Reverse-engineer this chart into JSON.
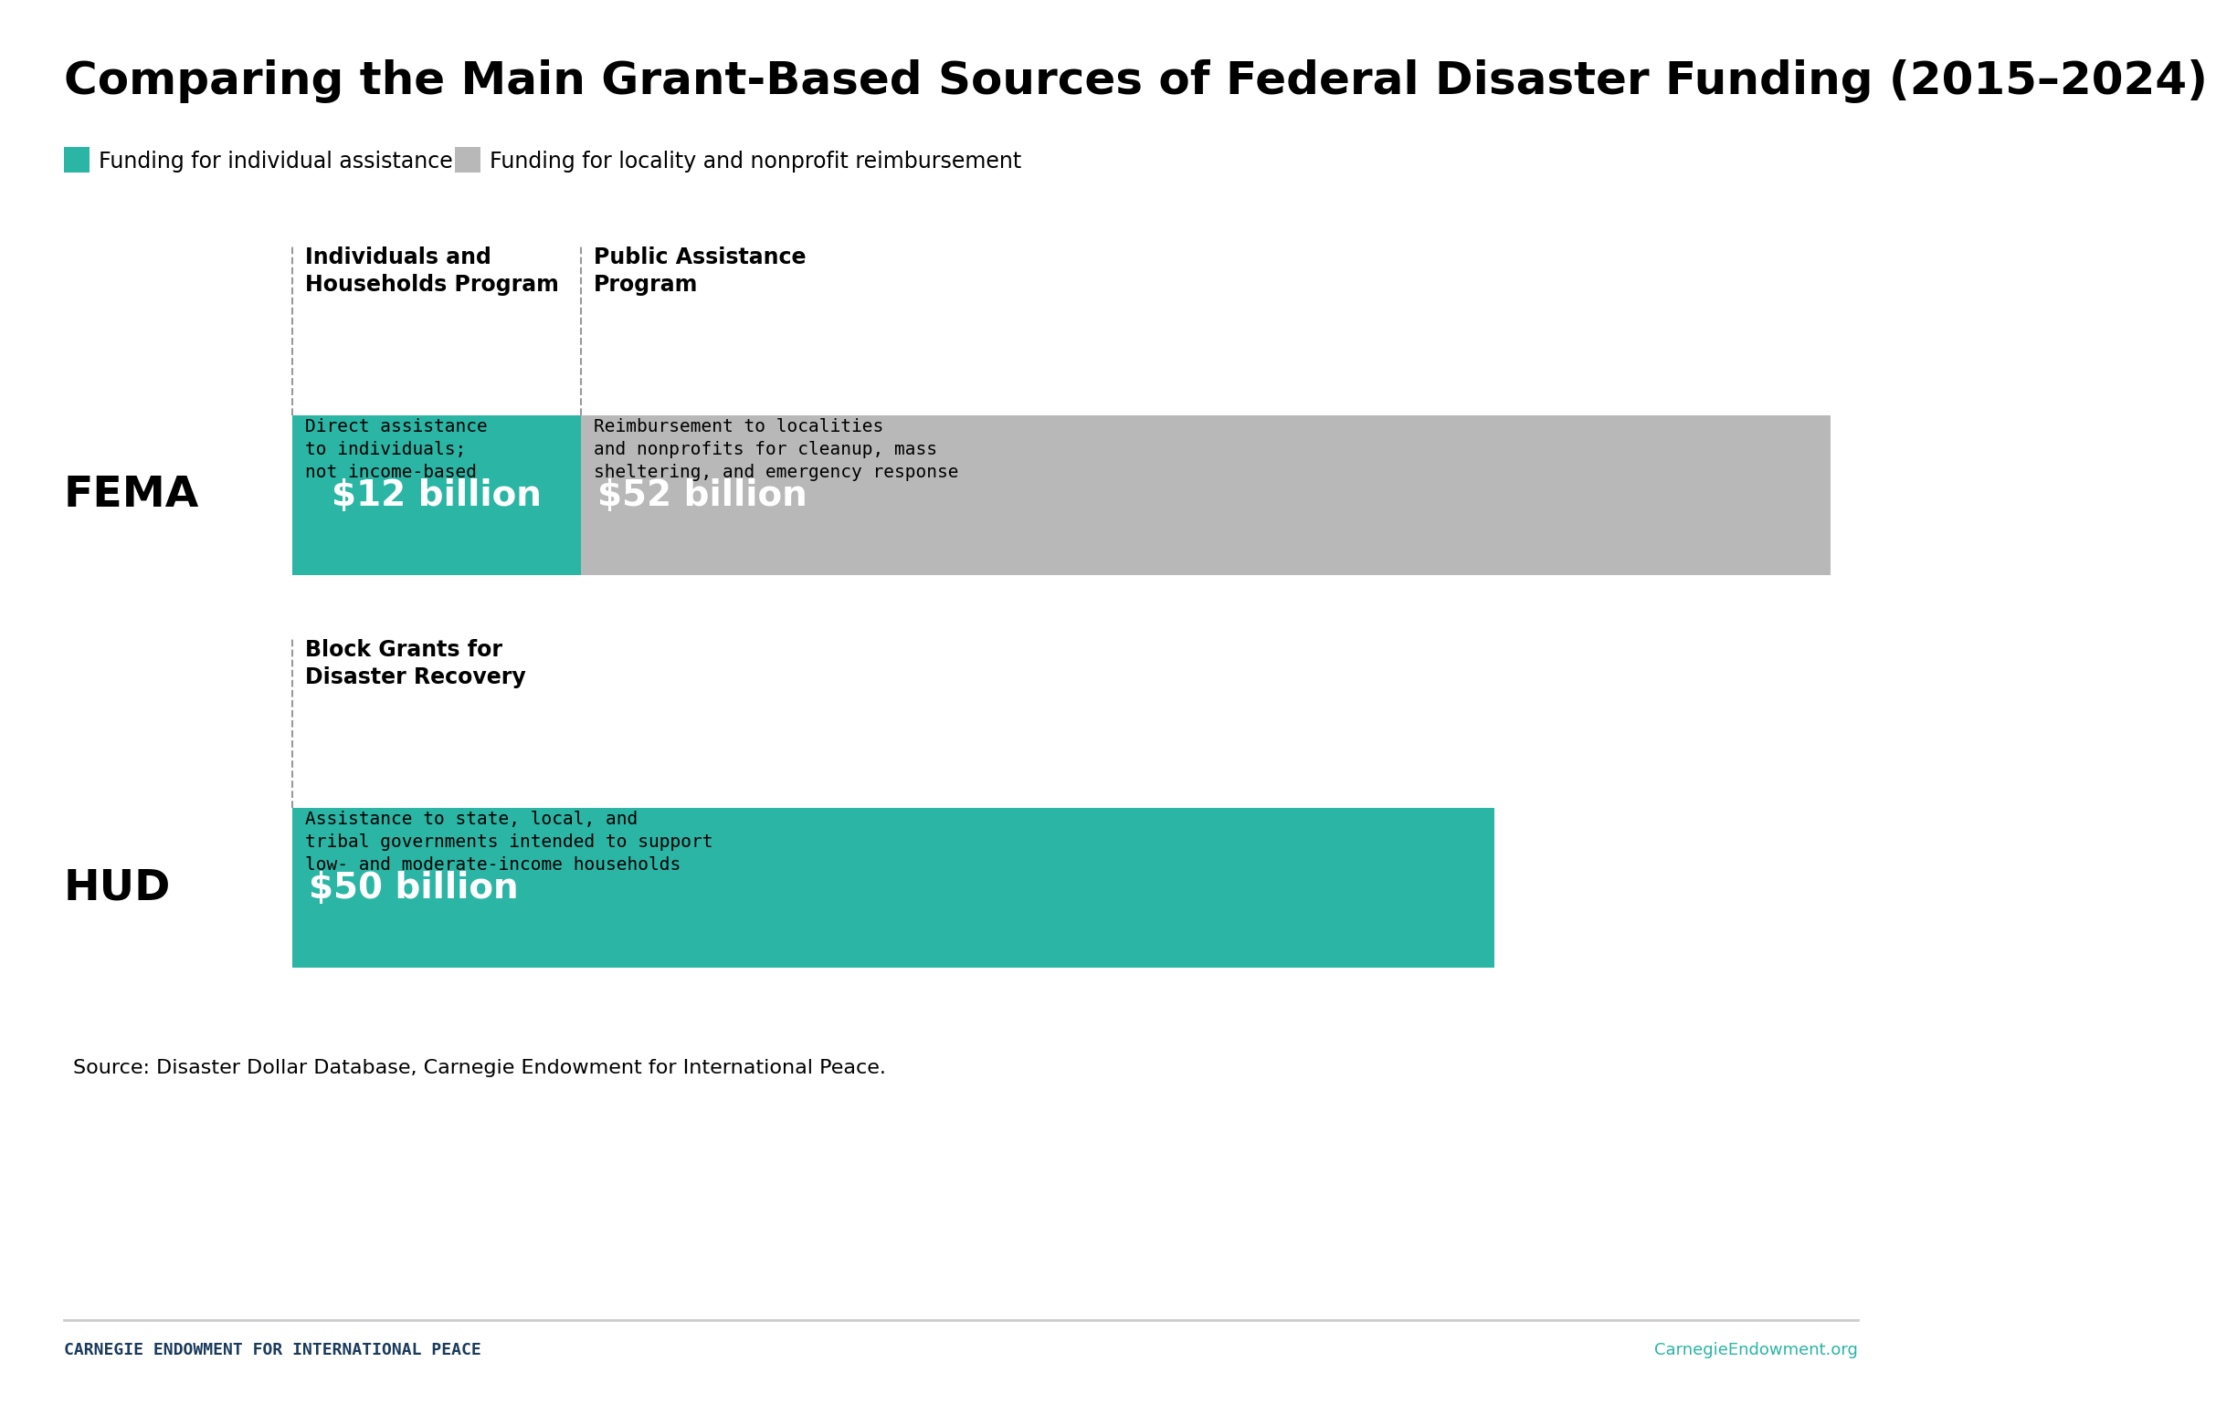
{
  "title": "Comparing the Main Grant-Based Sources of Federal Disaster Funding (2015–2024)",
  "teal_color": "#2ab5a5",
  "gray_color": "#b8b8b8",
  "dark_navy": "#1a3a5c",
  "white": "#ffffff",
  "black": "#000000",
  "background": "#ffffff",
  "legend_items": [
    {
      "label": "Funding for individual assistance",
      "color": "#2ab5a5"
    },
    {
      "label": "Funding for locality and nonprofit reimbursement",
      "color": "#b8b8b8"
    }
  ],
  "fema_bar": {
    "label": "FEMA",
    "segments": [
      {
        "value": 12,
        "label": "$12 billion",
        "color": "#2ab5a5"
      },
      {
        "value": 52,
        "label": "$52 billion",
        "color": "#b8b8b8"
      }
    ],
    "col1_header": "Individuals and\nHouseholds Program",
    "col1_desc": "Direct assistance\nto individuals;\nnot income-based",
    "col2_header": "Public Assistance\nProgram",
    "col2_desc": "Reimbursement to localities\nand nonprofits for cleanup, mass\nsheltering, and emergency response"
  },
  "hud_bar": {
    "label": "HUD",
    "segments": [
      {
        "value": 50,
        "label": "$50 billion",
        "color": "#2ab5a5"
      }
    ],
    "col1_header": "Block Grants for\nDisaster Recovery",
    "col1_desc": "Assistance to state, local, and\ntribal governments intended to support\nlow- and moderate-income households"
  },
  "source_text": "Source: Disaster Dollar Database, Carnegie Endowment for International Peace.",
  "footer_left": "CARNEGIE ENDOWMENT FOR INTERNATIONAL PEACE",
  "footer_right": "CarnegieEndowment.org",
  "footer_left_color": "#1a3a5c",
  "footer_right_color": "#2ab5a5",
  "total_value": 64
}
